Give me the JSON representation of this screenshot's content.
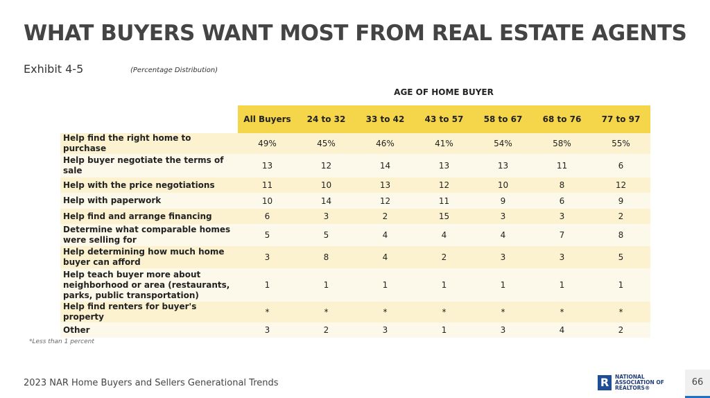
{
  "header": {
    "title": "WHAT BUYERS WANT MOST FROM REAL ESTATE AGENTS",
    "exhibit": "Exhibit 4-5",
    "subtitle": "(Percentage Distribution)"
  },
  "table": {
    "group_header": "AGE OF HOME BUYER",
    "columns": [
      "All Buyers",
      "24 to 32",
      "33 to 42",
      "43 to 57",
      "58 to 67",
      "68 to 76",
      "77 to 97"
    ],
    "rows": [
      [
        "Help find the right home to purchase",
        "49%",
        "45%",
        "46%",
        "41%",
        "54%",
        "58%",
        "55%"
      ],
      [
        "Help buyer negotiate the terms of sale",
        "13",
        "12",
        "14",
        "13",
        "13",
        "11",
        "6"
      ],
      [
        "Help with the price negotiations",
        "11",
        "10",
        "13",
        "12",
        "10",
        "8",
        "12"
      ],
      [
        "Help with paperwork",
        "10",
        "14",
        "12",
        "11",
        "9",
        "6",
        "9"
      ],
      [
        "Help find and arrange financing",
        "6",
        "3",
        "2",
        "15",
        "3",
        "3",
        "2"
      ],
      [
        "Determine what comparable homes were selling for",
        "5",
        "5",
        "4",
        "4",
        "4",
        "7",
        "8"
      ],
      [
        "Help determining how much home buyer can afford",
        "3",
        "8",
        "4",
        "2",
        "3",
        "3",
        "5"
      ],
      [
        "Help teach buyer more about neighborhood or area (restaurants, parks, public transportation)",
        "1",
        "1",
        "1",
        "1",
        "1",
        "1",
        "1"
      ],
      [
        "Help find renters for buyer's property",
        "*",
        "*",
        "*",
        "*",
        "*",
        "*",
        "*"
      ],
      [
        "Other",
        "3",
        "2",
        "3",
        "1",
        "3",
        "4",
        "2"
      ]
    ]
  },
  "footnote": "*Less than 1 percent",
  "footer": {
    "source": "2023 NAR Home Buyers and Sellers Generational Trends",
    "logo": [
      "NATIONAL",
      "ASSOCIATION OF",
      "REALTORS®"
    ],
    "page": "66"
  }
}
